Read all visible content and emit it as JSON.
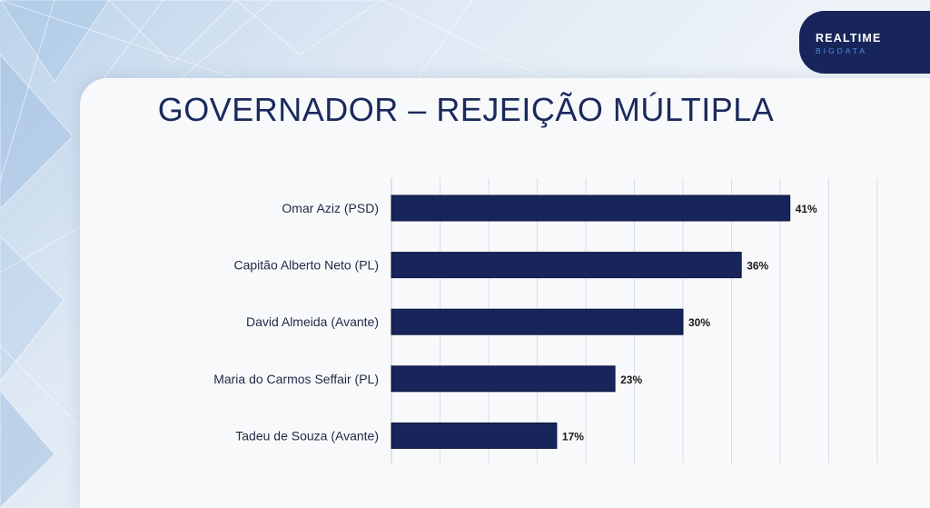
{
  "header": {
    "title": "GOVERNADOR – REJEIÇÃO MÚLTIPLA",
    "logo_main": "REALTIME",
    "logo_sub": "BIGDATA"
  },
  "colors": {
    "bar": "#17255a",
    "logo_bg": "#17255a",
    "logo_accent": "#4a8fe0",
    "title": "#1b2a5c"
  },
  "chart_data": {
    "type": "bar",
    "orientation": "horizontal",
    "title": "GOVERNADOR – REJEIÇÃO MÚLTIPLA",
    "categories": [
      "Omar Aziz (PSD)",
      "Capitão Alberto Neto (PL)",
      "David Almeida (Avante)",
      "Maria do Carmos Seffair (PL)",
      "Tadeu de Souza (Avante)"
    ],
    "values": [
      41,
      36,
      30,
      23,
      17
    ],
    "value_labels": [
      "41%",
      "36%",
      "30%",
      "23%",
      "17%"
    ],
    "xlim": [
      0,
      50
    ],
    "grid": "vertical",
    "legend": "none"
  }
}
